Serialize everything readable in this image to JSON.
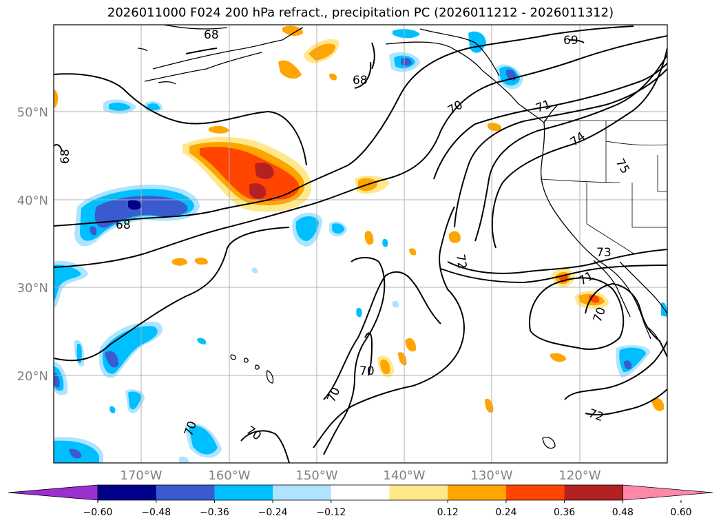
{
  "title": "2026011000 F024 200 hPa refract., precipitation PC (2026011212 - 2026011312)",
  "map": {
    "lat_labels": [
      "50°N",
      "40°N",
      "30°N",
      "20°N"
    ],
    "lon_labels": [
      "170°W",
      "160°W",
      "150°W",
      "140°W",
      "130°W",
      "120°W"
    ],
    "contour_labels": [
      "68",
      "69",
      "68",
      "70",
      "71",
      "74",
      "75",
      "68",
      "68",
      "72",
      "73",
      "71",
      "70",
      "70",
      "70",
      "70",
      "70",
      "72"
    ]
  },
  "colorbar": {
    "ticks": [
      "−0.60",
      "−0.48",
      "−0.36",
      "−0.24",
      "−0.12",
      "0.12",
      "0.24",
      "0.36",
      "0.48",
      "0.60"
    ],
    "colors": [
      "#9b30d0",
      "#00008b",
      "#3a5bd0",
      "#00bfff",
      "#aee4ff",
      "#ffffff",
      "#ffe88a",
      "#ffa500",
      "#ff4500",
      "#b22222",
      "#ff88aa"
    ]
  },
  "palette": {
    "dark_purple": "#00008b",
    "royal": "#3a5bd0",
    "sky": "#00bfff",
    "pale_sky": "#aee4ff",
    "pale_yellow": "#ffe88a",
    "orange": "#ffa500",
    "red_orange": "#ff4500",
    "dark_red": "#b22222"
  }
}
